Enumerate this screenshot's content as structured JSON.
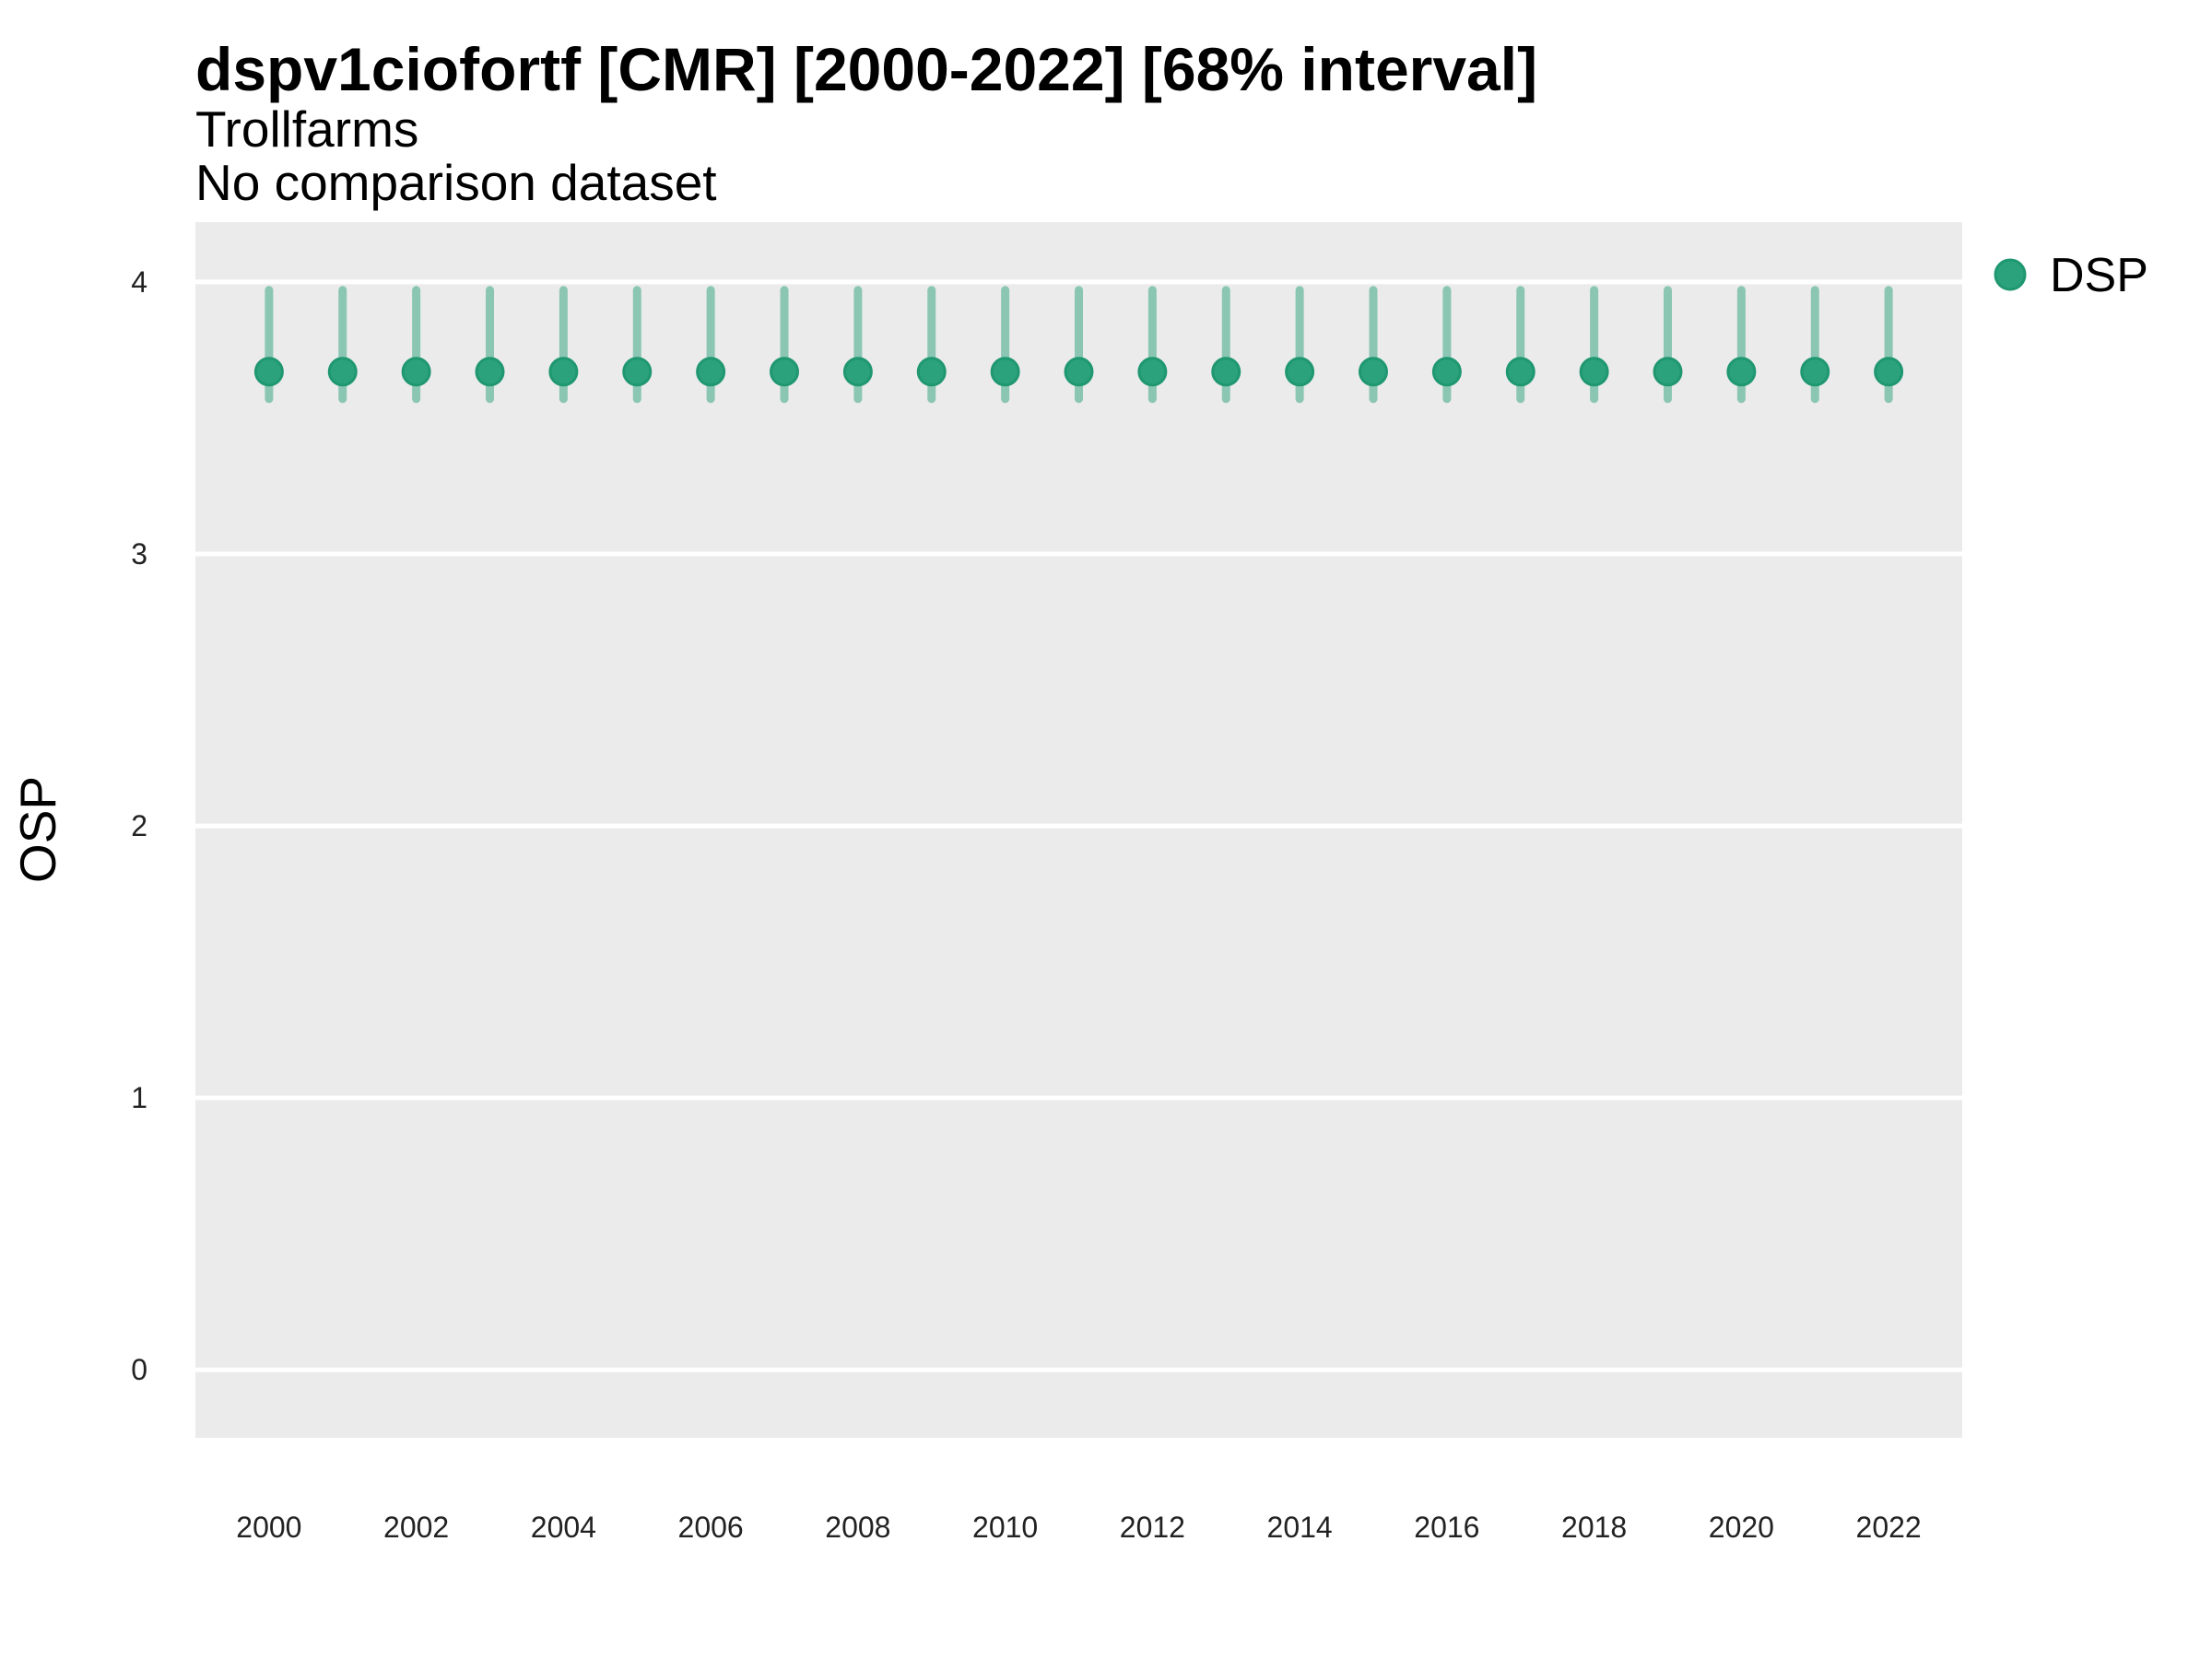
{
  "header": {
    "title_note": "title, subtitle and note are stored once in chart_data"
  },
  "colors": {
    "marker_fill": "#2BA27C",
    "marker_stroke": "#1F9770",
    "interval_bar": "rgba(43,162,124,0.5)",
    "panel_background": "#EBEBEB",
    "gridline": "#FFFFFF",
    "tick_text": "#222222",
    "label_text": "#000000"
  },
  "chart_data": {
    "type": "scatter",
    "title": "dspv1ciofortf [CMR] [2000-2022] [68% interval]",
    "subtitle": "Trollfarms",
    "note": "No comparison dataset",
    "xlabel": "",
    "ylabel": "OSP",
    "interval_level": "68%",
    "grid": "major horizontal white gridlines on gray panel",
    "legend_position": "right",
    "xlim": [
      1999,
      2023
    ],
    "ylim": [
      -0.25,
      4.22
    ],
    "x_ticks": [
      2000,
      2002,
      2004,
      2006,
      2008,
      2010,
      2012,
      2014,
      2016,
      2018,
      2020,
      2022
    ],
    "y_ticks": [
      0,
      1,
      2,
      3,
      4
    ],
    "series": [
      {
        "name": "DSP",
        "x": [
          2000,
          2001,
          2002,
          2003,
          2004,
          2005,
          2006,
          2007,
          2008,
          2009,
          2010,
          2011,
          2012,
          2013,
          2014,
          2015,
          2016,
          2017,
          2018,
          2019,
          2020,
          2021,
          2022
        ],
        "y": [
          3.67,
          3.67,
          3.67,
          3.67,
          3.67,
          3.67,
          3.67,
          3.67,
          3.67,
          3.67,
          3.67,
          3.67,
          3.67,
          3.67,
          3.67,
          3.67,
          3.67,
          3.67,
          3.67,
          3.67,
          3.67,
          3.67,
          3.67
        ],
        "lower": [
          3.57,
          3.57,
          3.57,
          3.57,
          3.57,
          3.57,
          3.57,
          3.57,
          3.57,
          3.57,
          3.57,
          3.57,
          3.57,
          3.57,
          3.57,
          3.57,
          3.57,
          3.57,
          3.57,
          3.57,
          3.57,
          3.57,
          3.57
        ],
        "upper": [
          3.97,
          3.97,
          3.97,
          3.97,
          3.97,
          3.97,
          3.97,
          3.97,
          3.97,
          3.97,
          3.97,
          3.97,
          3.97,
          3.97,
          3.97,
          3.97,
          3.97,
          3.97,
          3.97,
          3.97,
          3.97,
          3.97,
          3.97
        ]
      }
    ]
  }
}
